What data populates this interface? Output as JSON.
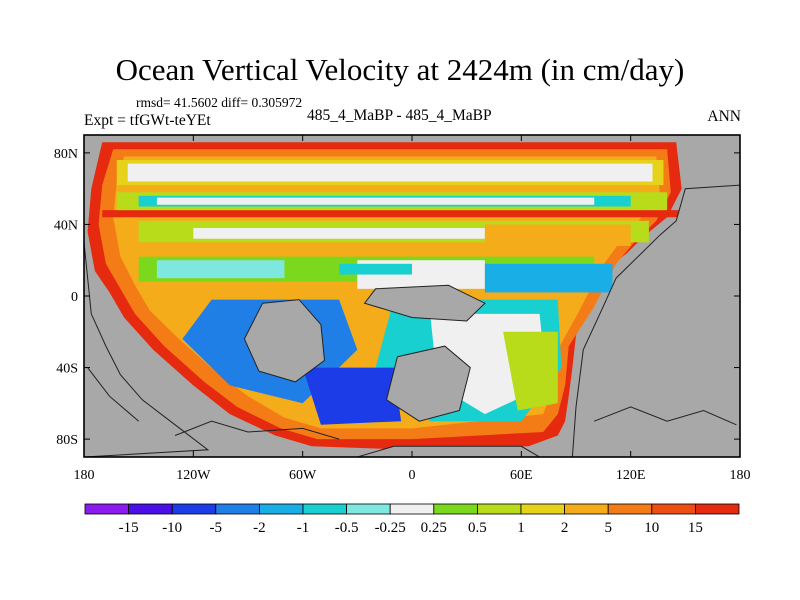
{
  "chart_data": {
    "type": "heatmap",
    "title": "Ocean Vertical Velocity at 2424m (in cm/day)",
    "stats": "rmsd= 41.5602  diff= 0.305972",
    "experiment": "Expt = tfGWt-teYEt",
    "subtitle": "485_4_MaBP - 485_4_MaBP",
    "season": "ANN",
    "x_ticks": [
      "180",
      "120W",
      "60W",
      "0",
      "60E",
      "120E",
      "180"
    ],
    "y_ticks": [
      "80N",
      "40N",
      "0",
      "40S",
      "80S"
    ],
    "xlim": [
      -180,
      180
    ],
    "ylim": [
      -90,
      90
    ],
    "x_tick_values": [
      -180,
      -120,
      -60,
      0,
      60,
      120,
      180
    ],
    "y_tick_values": [
      80,
      40,
      0,
      -40,
      -80
    ],
    "colorbar": {
      "labels": [
        "-15",
        "-10",
        "-5",
        "-2",
        "-1",
        "-0.5",
        "-0.25",
        "0.25",
        "0.5",
        "1",
        "2",
        "5",
        "10",
        "15"
      ],
      "colors": [
        "#8a1cf0",
        "#4a10e6",
        "#1c3ce8",
        "#1f7fe6",
        "#1aaee6",
        "#18d0d0",
        "#7ee8e0",
        "#f0f0f0",
        "#7cd81c",
        "#b8dc1a",
        "#e6d21a",
        "#f4ac1a",
        "#f47c16",
        "#ec4e14",
        "#e62a10"
      ]
    },
    "land_color": "#a8a8a8"
  }
}
